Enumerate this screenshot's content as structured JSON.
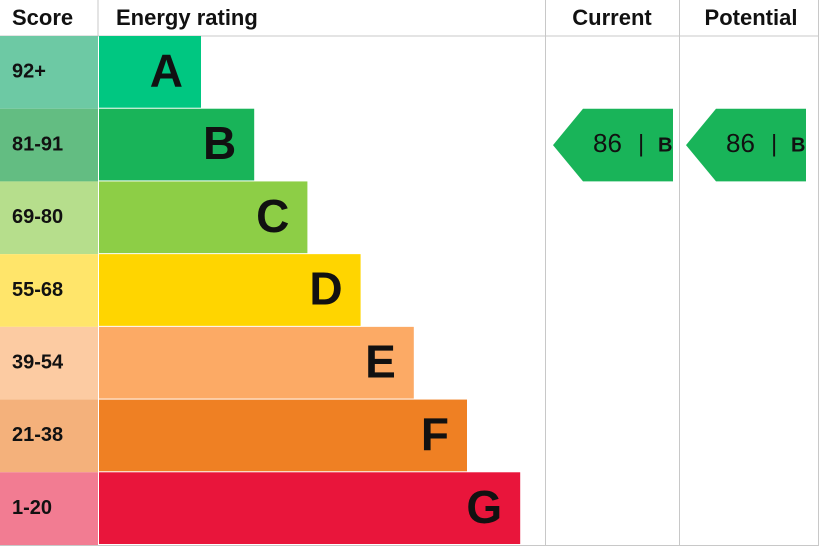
{
  "header": {
    "score": "Score",
    "rating": "Energy rating",
    "current": "Current",
    "potential": "Potential"
  },
  "bands": [
    {
      "score": "92+",
      "letter": "A",
      "color": "#00c781",
      "score_color": "#6dc9a4"
    },
    {
      "score": "81-91",
      "letter": "B",
      "color": "#19b459",
      "score_color": "#63bd82"
    },
    {
      "score": "69-80",
      "letter": "C",
      "color": "#8dce46",
      "score_color": "#b6de8c"
    },
    {
      "score": "55-68",
      "letter": "D",
      "color": "#ffd500",
      "score_color": "#ffe56a"
    },
    {
      "score": "39-54",
      "letter": "E",
      "color": "#fcaa65",
      "score_color": "#fccba2"
    },
    {
      "score": "21-38",
      "letter": "F",
      "color": "#ef8023",
      "score_color": "#f4b17b"
    },
    {
      "score": "1-20",
      "letter": "G",
      "color": "#e9153b",
      "score_color": "#f27c92"
    }
  ],
  "current": {
    "score": 86,
    "separator": "|",
    "band": "B"
  },
  "potential": {
    "score": 86,
    "separator": "|",
    "band": "B"
  }
}
